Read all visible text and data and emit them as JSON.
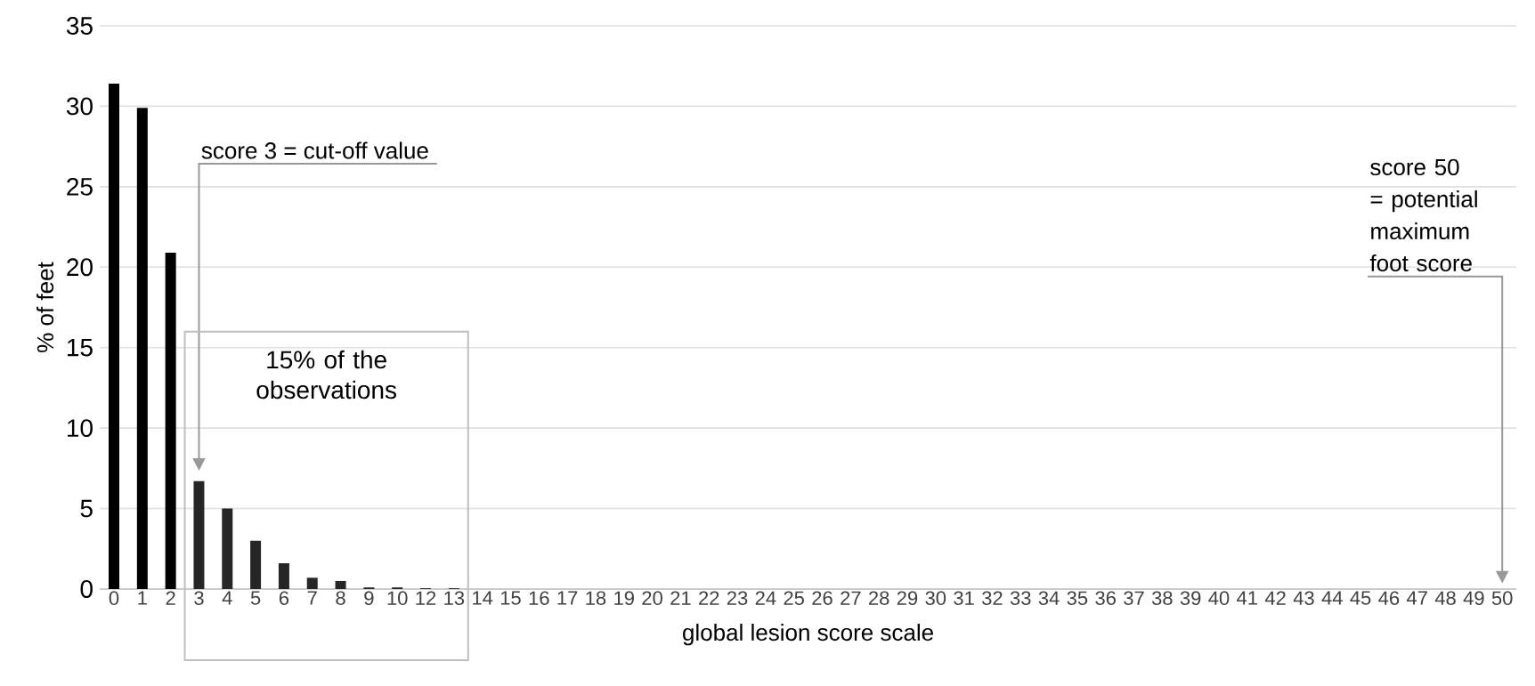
{
  "chart_data": {
    "type": "bar",
    "xlabel": "global lesion score scale",
    "ylabel": "% of feet",
    "categories": [
      "0",
      "1",
      "2",
      "3",
      "4",
      "5",
      "6",
      "7",
      "8",
      "9",
      "10",
      "12",
      "13",
      "14",
      "15",
      "16",
      "17",
      "18",
      "19",
      "20",
      "21",
      "22",
      "23",
      "24",
      "25",
      "26",
      "27",
      "28",
      "29",
      "30",
      "31",
      "32",
      "33",
      "34",
      "35",
      "36",
      "37",
      "38",
      "39",
      "40",
      "41",
      "42",
      "43",
      "44",
      "45",
      "46",
      "47",
      "48",
      "49",
      "50"
    ],
    "values": [
      31.4,
      29.9,
      20.9,
      6.7,
      5.0,
      3.0,
      1.6,
      0.7,
      0.5,
      0.1,
      0.1,
      0.05,
      0.05,
      0,
      0,
      0,
      0,
      0,
      0,
      0,
      0,
      0,
      0,
      0,
      0,
      0,
      0,
      0,
      0,
      0,
      0,
      0,
      0,
      0,
      0,
      0,
      0,
      0,
      0,
      0,
      0,
      0,
      0,
      0,
      0,
      0,
      0,
      0,
      0,
      0
    ],
    "colors": [
      "#000000",
      "#000000",
      "#000000",
      "#262626",
      "#262626",
      "#262626",
      "#262626",
      "#262626",
      "#262626",
      "#262626",
      "#262626",
      "#262626",
      "#262626",
      "#262626",
      "#262626",
      "#262626",
      "#262626",
      "#262626",
      "#262626",
      "#262626",
      "#262626",
      "#262626",
      "#262626",
      "#262626",
      "#262626",
      "#262626",
      "#262626",
      "#262626",
      "#262626",
      "#262626",
      "#262626",
      "#262626",
      "#262626",
      "#262626",
      "#262626",
      "#262626",
      "#262626",
      "#262626",
      "#262626",
      "#262626",
      "#262626",
      "#262626",
      "#262626",
      "#262626",
      "#262626",
      "#262626",
      "#262626",
      "#262626",
      "#262626",
      "#262626"
    ],
    "ylim": [
      0,
      35
    ],
    "yticks": [
      0,
      5,
      10,
      15,
      20,
      25,
      30,
      35
    ],
    "grid": "y",
    "annotations": [
      "score 3 = cut-off value",
      "score 50 = potential maximum foot score",
      "15% of the observations"
    ]
  }
}
